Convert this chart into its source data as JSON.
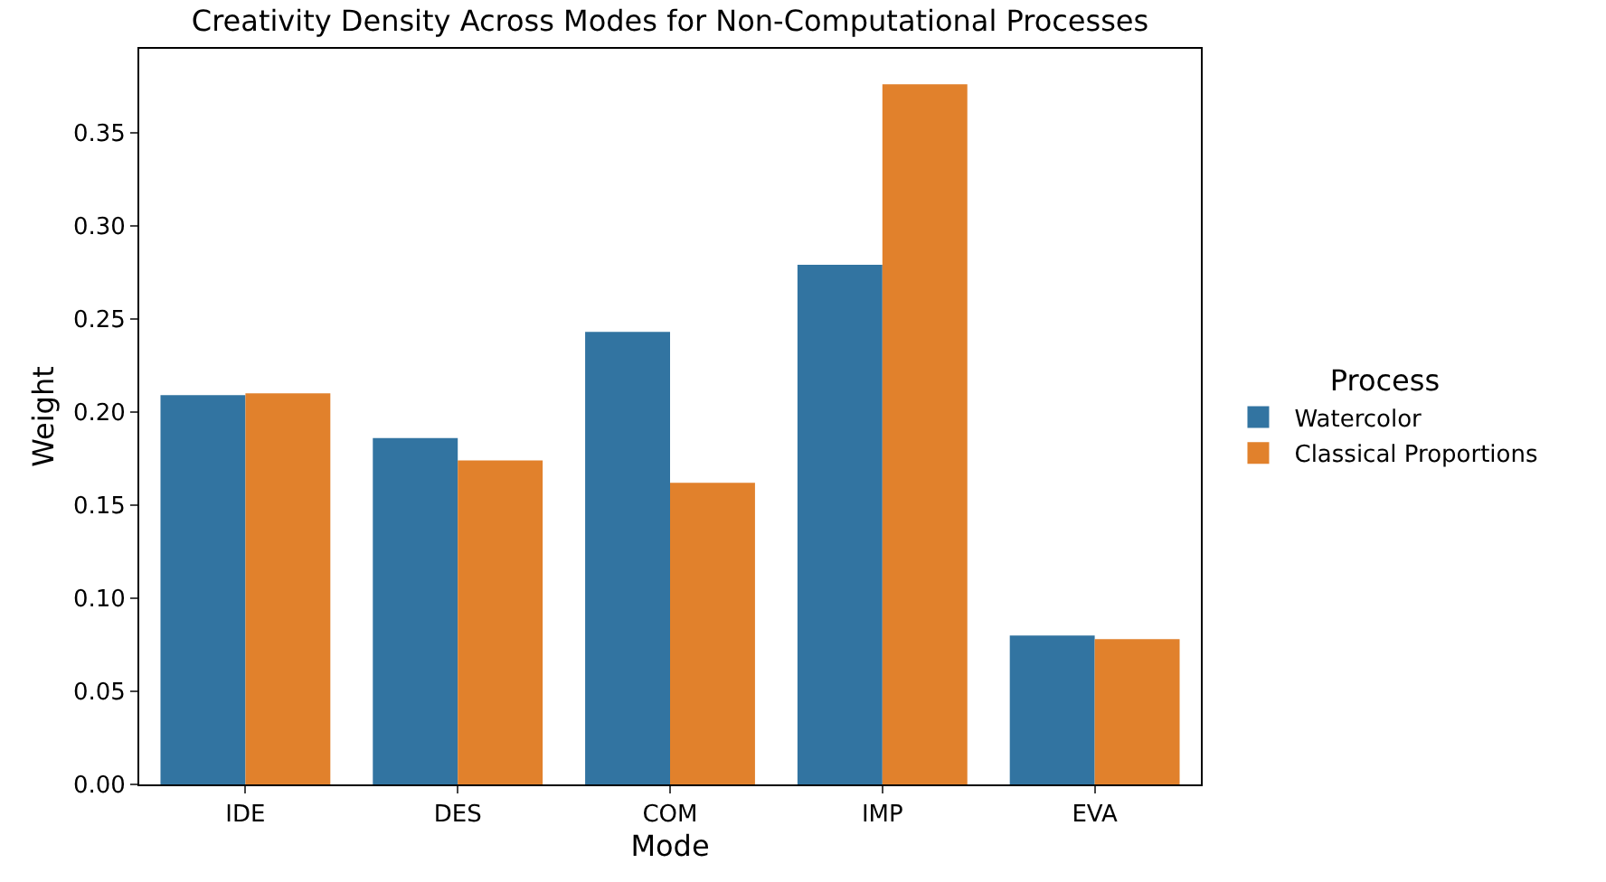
{
  "chart_data": {
    "type": "bar",
    "title": "Creativity Density Across Modes for Non-Computational Processes",
    "xlabel": "Mode",
    "ylabel": "Weight",
    "legend_title": "Process",
    "categories": [
      "IDE",
      "DES",
      "COM",
      "IMP",
      "EVA"
    ],
    "series": [
      {
        "name": "Watercolor",
        "color": "#3274a1",
        "values": [
          0.209,
          0.186,
          0.243,
          0.279,
          0.08
        ]
      },
      {
        "name": "Classical Proportions",
        "color": "#e1812c",
        "values": [
          0.21,
          0.174,
          0.162,
          0.376,
          0.078
        ]
      }
    ],
    "ylim": [
      0,
      0.395
    ],
    "yticks": [
      {
        "value": 0,
        "label": "0.00"
      },
      0.05,
      {
        "value": 0.1,
        "label": "0.10"
      },
      0.15,
      {
        "value": 0.2,
        "label": "0.20"
      },
      0.25,
      {
        "value": 0.3,
        "label": "0.30"
      },
      0.35
    ],
    "legend": "right"
  }
}
